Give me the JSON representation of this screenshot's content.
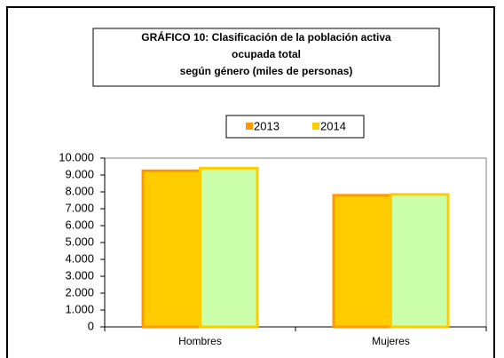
{
  "chart_data": {
    "type": "bar",
    "title": [
      "GRÁFICO 10: Clasificación de la población activa",
      "ocupada total",
      "según género (miles de personas)"
    ],
    "categories": [
      "Hombres",
      "Mujeres"
    ],
    "series": [
      {
        "name": "2013",
        "color": "#ffcc00",
        "border_color": "#ff9900",
        "values": [
          9250,
          7800
        ]
      },
      {
        "name": "2014",
        "color": "#ccffaa",
        "border_color": "#ffcc00",
        "values": [
          9400,
          7850
        ]
      }
    ],
    "ylim": [
      0,
      10000
    ],
    "yticks": [
      0,
      {
        "value": 1000,
        "label": "1.000"
      },
      {
        "value": 2000,
        "label": "2.000"
      },
      {
        "value": 3000,
        "label": "3.000"
      },
      {
        "value": 4000,
        "label": "4.000"
      },
      {
        "value": 5000,
        "label": "5.000"
      },
      {
        "value": 6000,
        "label": "6.000"
      },
      {
        "value": 7000,
        "label": "7.000"
      },
      {
        "value": 8000,
        "label": "8.000"
      },
      {
        "value": 9000,
        "label": "9.000"
      },
      {
        "value": 10000,
        "label": "10.000"
      }
    ],
    "legend": "top",
    "grid": false
  }
}
